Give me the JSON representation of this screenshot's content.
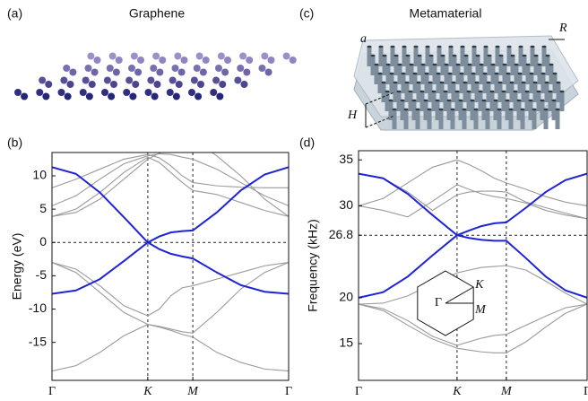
{
  "labels": {
    "panel_a": "(a)",
    "title_a": "Graphene",
    "panel_c": "(c)",
    "title_c": "Metamaterial",
    "panel_b": "(b)",
    "panel_d": "(d)",
    "lattice_a": "a",
    "radius_r": "R",
    "height_h": "H"
  },
  "chart_data": [
    {
      "type": "line",
      "ylabel": "Energy  (eV)",
      "x": [
        0,
        0.25,
        0.5,
        0.75,
        1,
        1.12,
        1.24,
        1.36,
        1.47,
        1.72,
        1.97,
        2.22,
        2.47
      ],
      "xlim": [
        0,
        2.47
      ],
      "xticks": [
        {
          "value": 0,
          "label": "Γ"
        },
        {
          "value": 1,
          "label": "K"
        },
        {
          "value": 1.47,
          "label": "M"
        },
        {
          "value": 2.47,
          "label": "Γ"
        }
      ],
      "xtick_dashed": [
        false,
        true,
        true,
        false
      ],
      "ylim": [
        -20.7,
        13.5
      ],
      "yticks": [
        -15,
        -10,
        -5,
        0,
        5,
        10
      ],
      "reference_y": 0,
      "series": [
        {
          "color": "#9a9a9a",
          "values": [
            8.2,
            9.5,
            11,
            12.5,
            13.2,
            12.7,
            11.5,
            10,
            9,
            8.5,
            8.3,
            8.2,
            8.2
          ]
        },
        {
          "color": "#9a9a9a",
          "values": [
            5.5,
            7,
            9.5,
            11.8,
            13,
            13.3,
            13.2,
            12.8,
            12.5,
            11,
            9,
            7,
            5.5
          ]
        },
        {
          "color": "#9a9a9a",
          "values": [
            3.9,
            5,
            7.5,
            10.5,
            12.8,
            12,
            10.5,
            9,
            7.8,
            7.2,
            6,
            4.8,
            3.9
          ]
        },
        {
          "color": "#9a9a9a",
          "values": [
            3.9,
            4.5,
            6.5,
            9.5,
            12.5,
            13.4,
            14,
            14.8,
            15.5,
            13,
            10,
            6.5,
            3.9
          ]
        },
        {
          "color": "#9a9a9a",
          "values": [
            -3,
            -4,
            -6.5,
            -9.5,
            -11,
            -10,
            -8,
            -6.8,
            -6.5,
            -5.5,
            -4.5,
            -3.5,
            -3
          ]
        },
        {
          "color": "#9a9a9a",
          "values": [
            -3,
            -4.5,
            -7.5,
            -10.5,
            -12.3,
            -12.6,
            -13,
            -13.4,
            -13.6,
            -10.5,
            -7,
            -4.5,
            -3
          ]
        },
        {
          "color": "#9a9a9a",
          "values": [
            -19.3,
            -18.5,
            -16.5,
            -14,
            -12.3,
            -12.7,
            -13.2,
            -13.8,
            -14.2,
            -16.5,
            -18,
            -19,
            -19.3
          ]
        },
        {
          "color": "#1f23d6",
          "values": [
            11.3,
            10.3,
            7.5,
            3.8,
            0,
            0.9,
            1.5,
            1.7,
            1.8,
            4.5,
            7.8,
            10.2,
            11.3
          ]
        },
        {
          "color": "#1f23d6",
          "values": [
            -7.7,
            -7.2,
            -5.5,
            -2.8,
            0,
            -1,
            -1.7,
            -2.1,
            -2.4,
            -4.5,
            -6.4,
            -7.4,
            -7.7
          ]
        }
      ]
    },
    {
      "type": "line",
      "ylabel": "Frequency  (kHz)",
      "x": [
        0,
        0.25,
        0.5,
        0.75,
        1,
        1.12,
        1.25,
        1.38,
        1.5,
        1.7,
        1.9,
        2.1,
        2.32
      ],
      "xlim": [
        0,
        2.32
      ],
      "xticks": [
        {
          "value": 0,
          "label": "Γ"
        },
        {
          "value": 1,
          "label": "K"
        },
        {
          "value": 1.5,
          "label": "M"
        },
        {
          "value": 2.32,
          "label": "Γ"
        }
      ],
      "xtick_dashed": [
        false,
        true,
        true,
        false
      ],
      "ylim": [
        11,
        36
      ],
      "yticks": [
        15,
        20,
        26.8,
        30,
        35
      ],
      "reference_y": 26.8,
      "inset_labels": [
        "Γ",
        "K",
        "M"
      ],
      "series": [
        {
          "color": "#9a9a9a",
          "values": [
            30,
            30.8,
            32.5,
            34.2,
            35,
            34.5,
            33.8,
            33,
            32.5,
            31.8,
            31,
            30.4,
            30
          ]
        },
        {
          "color": "#9a9a9a",
          "values": [
            30,
            29.5,
            28.8,
            30.5,
            32.3,
            31.8,
            31.3,
            31,
            30.8,
            30.3,
            29.5,
            29,
            28.6
          ]
        },
        {
          "color": "#9a9a9a",
          "values": [
            33.5,
            33,
            31.5,
            29.5,
            31.2,
            31.5,
            31.6,
            31.6,
            31.5,
            30.4,
            29.8,
            29.2,
            28.6
          ]
        },
        {
          "color": "#9a9a9a",
          "values": [
            19.3,
            18.8,
            17.5,
            15.8,
            14.8,
            15.2,
            15.6,
            15.9,
            16,
            17,
            18,
            18.9,
            19.3
          ]
        },
        {
          "color": "#9a9a9a",
          "values": [
            19.3,
            18.6,
            17,
            15.5,
            14.5,
            14.3,
            14.1,
            14,
            14,
            15.2,
            16.8,
            18.3,
            19.3
          ]
        },
        {
          "color": "#9a9a9a",
          "values": [
            19.3,
            19.4,
            20.2,
            21.5,
            22.7,
            23,
            23.3,
            23.4,
            23.5,
            23,
            21.8,
            20.5,
            19.3
          ]
        },
        {
          "color": "#1f23d6",
          "values": [
            33.5,
            33,
            31.3,
            29,
            26.8,
            27.3,
            27.8,
            28.1,
            28.2,
            29.8,
            31.5,
            32.8,
            33.5
          ]
        },
        {
          "color": "#1f23d6",
          "values": [
            20,
            20.6,
            22.3,
            24.6,
            26.8,
            26.5,
            26.3,
            26.2,
            26.2,
            24.3,
            22.3,
            20.8,
            20
          ]
        }
      ]
    }
  ]
}
